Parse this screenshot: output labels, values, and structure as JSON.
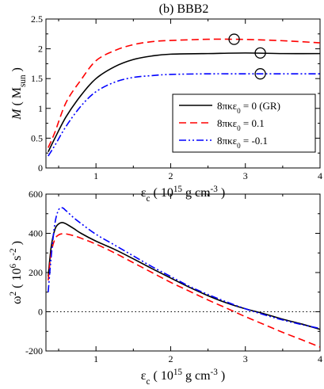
{
  "figure_title": "(b) BBB2",
  "chart_data": [
    {
      "type": "line",
      "panel": "top",
      "xlabel_parts": [
        "ε",
        "c",
        " ( 10",
        "15",
        " g cm",
        "-3",
        " )"
      ],
      "ylabel_parts": [
        "M",
        " ( ",
        "M",
        "sun",
        " )"
      ],
      "xlim": [
        0.33,
        4.0
      ],
      "ylim": [
        0,
        2.5
      ],
      "xticks": [
        1,
        2,
        3,
        4
      ],
      "yticks": [
        0,
        0.5,
        1,
        1.5,
        2,
        2.5
      ],
      "xtick_labels": [
        "1",
        "2",
        "3",
        "4"
      ],
      "ytick_labels": [
        "0",
        "0.5",
        "1",
        "1.5",
        "2",
        "2.5"
      ],
      "legend_position": "center-right",
      "series": [
        {
          "name_parts": [
            "8πκε",
            "0",
            " = 0 (GR)"
          ],
          "color": "#000000",
          "style": "solid",
          "x": [
            0.36,
            0.45,
            0.6,
            0.8,
            1.0,
            1.25,
            1.5,
            1.75,
            2.0,
            2.5,
            3.0,
            3.5,
            4.0
          ],
          "y": [
            0.27,
            0.5,
            0.86,
            1.22,
            1.5,
            1.7,
            1.82,
            1.88,
            1.91,
            1.92,
            1.93,
            1.92,
            1.92
          ]
        },
        {
          "name_parts": [
            "8πκε",
            "0",
            " = 0.1"
          ],
          "color": "#ff0000",
          "style": "dashed",
          "x": [
            0.36,
            0.45,
            0.6,
            0.8,
            1.0,
            1.25,
            1.5,
            1.75,
            2.0,
            2.5,
            2.85,
            3.2,
            3.6,
            4.0
          ],
          "y": [
            0.34,
            0.6,
            1.1,
            1.48,
            1.8,
            1.97,
            2.07,
            2.12,
            2.14,
            2.16,
            2.16,
            2.15,
            2.13,
            2.1
          ]
        },
        {
          "name_parts": [
            "8πκε",
            "0",
            " = -0.1"
          ],
          "color": "#0000ff",
          "style": "dashdotdot",
          "x": [
            0.36,
            0.45,
            0.6,
            0.8,
            1.0,
            1.25,
            1.5,
            1.75,
            2.0,
            2.5,
            3.0,
            3.5,
            4.0
          ],
          "y": [
            0.2,
            0.38,
            0.7,
            1.04,
            1.28,
            1.44,
            1.52,
            1.55,
            1.57,
            1.58,
            1.58,
            1.58,
            1.58
          ]
        }
      ],
      "markers": [
        {
          "series": "GR",
          "x": 3.2,
          "y": 1.93
        },
        {
          "series": "0.1",
          "x": 2.85,
          "y": 2.16
        },
        {
          "series": "-0.1",
          "x": 3.2,
          "y": 1.58
        }
      ]
    },
    {
      "type": "line",
      "panel": "bottom",
      "xlabel_parts": [
        "ε",
        "c",
        " ( 10",
        "15",
        " g cm",
        "-3",
        " )"
      ],
      "ylabel_parts": [
        "ω",
        "2",
        " ( 10",
        "6",
        " s",
        "-2",
        " )"
      ],
      "xlim": [
        0.33,
        4.0
      ],
      "ylim": [
        -200,
        600
      ],
      "xticks": [
        1,
        2,
        3,
        4
      ],
      "yticks": [
        -200,
        0,
        200,
        400,
        600
      ],
      "xtick_labels": [
        "1",
        "2",
        "3",
        "4"
      ],
      "ytick_labels": [
        "-200",
        "0",
        "200",
        "400",
        "600"
      ],
      "reference_line": {
        "y": 0,
        "style": "dotted"
      },
      "series": [
        {
          "name": "GR",
          "color": "#000000",
          "style": "solid",
          "x": [
            0.36,
            0.4,
            0.45,
            0.5,
            0.55,
            0.6,
            0.7,
            0.8,
            1.0,
            1.25,
            1.5,
            1.75,
            2.0,
            2.25,
            2.5,
            2.75,
            3.0,
            3.25,
            3.5,
            3.75,
            4.0
          ],
          "y": [
            180,
            330,
            420,
            448,
            455,
            448,
            425,
            400,
            360,
            318,
            270,
            220,
            172,
            125,
            82,
            45,
            15,
            -10,
            -38,
            -62,
            -90
          ]
        },
        {
          "name": "0.1",
          "color": "#ff0000",
          "style": "dashed",
          "x": [
            0.36,
            0.4,
            0.45,
            0.5,
            0.55,
            0.6,
            0.7,
            0.8,
            1.0,
            1.25,
            1.5,
            1.75,
            2.0,
            2.25,
            2.5,
            2.75,
            3.0,
            3.25,
            3.5,
            3.75,
            4.0
          ],
          "y": [
            160,
            300,
            370,
            392,
            398,
            397,
            388,
            375,
            345,
            300,
            250,
            200,
            150,
            105,
            60,
            18,
            -25,
            -65,
            -105,
            -142,
            -180
          ]
        },
        {
          "name": "-0.1",
          "color": "#0000ff",
          "style": "dashdotdot",
          "x": [
            0.36,
            0.4,
            0.45,
            0.5,
            0.55,
            0.6,
            0.7,
            0.8,
            1.0,
            1.25,
            1.5,
            1.75,
            2.0,
            2.25,
            2.5,
            2.75,
            3.0,
            3.25,
            3.5,
            3.75,
            4.0
          ],
          "y": [
            100,
            280,
            450,
            520,
            530,
            515,
            480,
            450,
            395,
            340,
            285,
            230,
            180,
            130,
            88,
            50,
            15,
            -15,
            -42,
            -65,
            -85
          ]
        }
      ]
    }
  ]
}
